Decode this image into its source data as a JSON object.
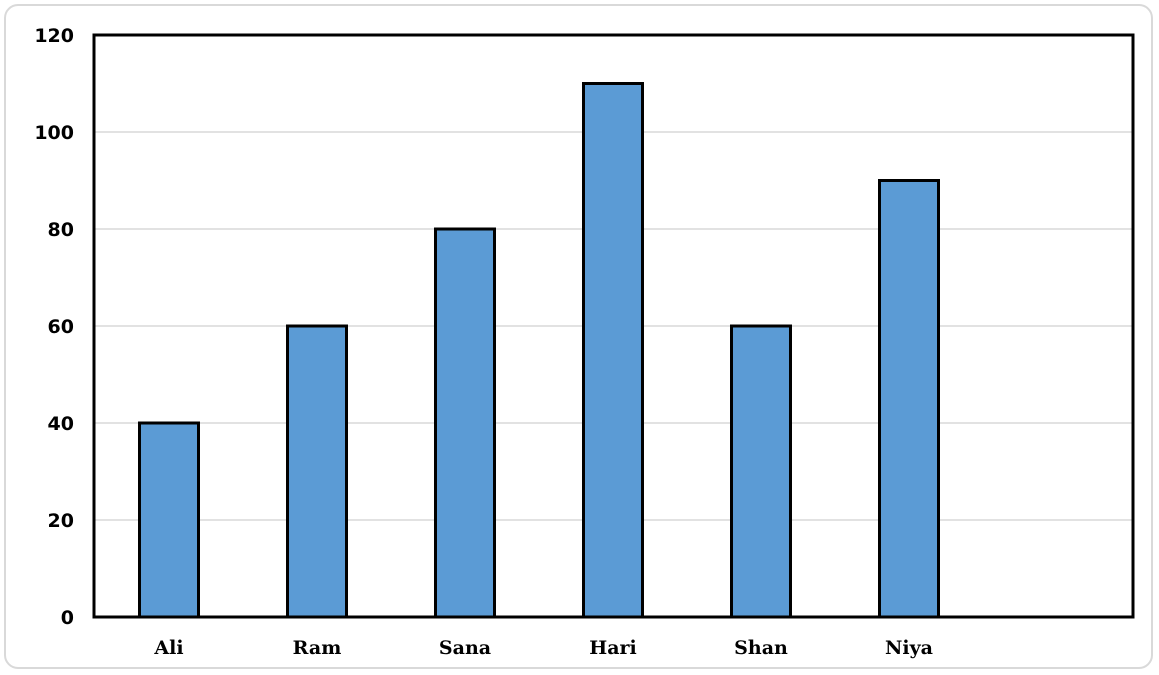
{
  "chart_data": {
    "type": "bar",
    "categories": [
      "Ali",
      "Ram",
      "Sana",
      "Hari",
      "Shan",
      "Niya"
    ],
    "values": [
      40,
      60,
      80,
      110,
      60,
      90
    ],
    "title": "",
    "xlabel": "",
    "ylabel": "",
    "ylim": [
      0,
      120
    ],
    "yticks": [
      0,
      20,
      40,
      60,
      80,
      100,
      120
    ],
    "grid": true,
    "legend": "none",
    "bar_color": "#5b9bd5",
    "bar_edge_color": "#000000",
    "grid_color": "#d9d9d9"
  }
}
